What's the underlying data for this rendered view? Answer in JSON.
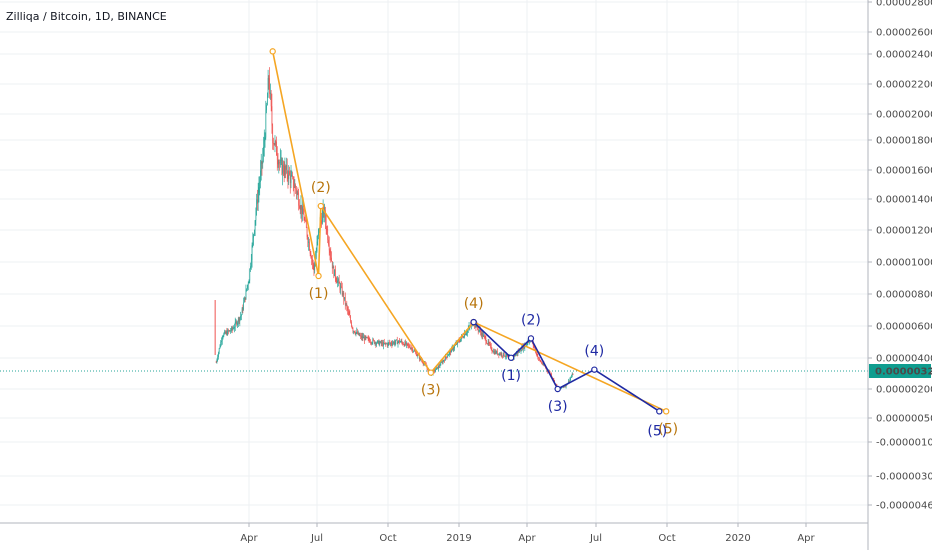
{
  "chart_title": "Zilliqa / Bitcoin, 1D, BINANCE",
  "colors": {
    "candle_up": "#26a69a",
    "candle_down": "#ef5350",
    "wave_primary": "#f5a623",
    "wave_primary_label": "#b8750c",
    "wave_secondary": "#1f2aa3",
    "last_price_line": "#26a69a",
    "last_price_badge": "#0f9d8f"
  },
  "chart_data": {
    "type": "candlestick",
    "title": "Zilliqa / Bitcoin, 1D, BINANCE",
    "x_unit": "date",
    "y_tick_labels": [
      "0.00002800",
      "0.00002600",
      "0.00002400",
      "0.00002200",
      "0.00002000",
      "0.00001800",
      "0.00001600",
      "0.00001400",
      "0.00001200",
      "0.00001000",
      "0.00000800",
      "0.00000600",
      "0.00000400",
      "0.00000200",
      "0.00000050",
      "-0.00000100",
      "-0.00000300",
      "-0.00000460"
    ],
    "x_tick_labels": [
      "Apr",
      "Jul",
      "Oct",
      "2019",
      "Apr",
      "Jul",
      "Oct",
      "2020",
      "Apr"
    ],
    "last_price": "0.00000320",
    "price_series": [
      [
        "2018-02-17",
        3.8e-06
      ],
      [
        "2018-02-25",
        5.6e-06
      ],
      [
        "2018-03-10",
        6e-06
      ],
      [
        "2018-03-22",
        7e-06
      ],
      [
        "2018-04-01",
        9.5e-06
      ],
      [
        "2018-04-10",
        1.4e-05
      ],
      [
        "2018-04-20",
        1.8e-05
      ],
      [
        "2018-04-27",
        2.3e-05
      ],
      [
        "2018-05-02",
        1.9e-05
      ],
      [
        "2018-05-12",
        1.7e-05
      ],
      [
        "2018-05-22",
        1.65e-05
      ],
      [
        "2018-06-01",
        1.55e-05
      ],
      [
        "2018-06-12",
        1.35e-05
      ],
      [
        "2018-06-25",
        1e-05
      ],
      [
        "2018-07-02",
        1.3e-05
      ],
      [
        "2018-07-08",
        1.4e-05
      ],
      [
        "2018-07-20",
        1e-05
      ],
      [
        "2018-08-01",
        8.5e-06
      ],
      [
        "2018-08-15",
        6e-06
      ],
      [
        "2018-08-25",
        5.5e-06
      ],
      [
        "2018-09-10",
        5.2e-06
      ],
      [
        "2018-09-25",
        5e-06
      ],
      [
        "2018-10-15",
        5.2e-06
      ],
      [
        "2018-10-30",
        4.8e-06
      ],
      [
        "2018-11-15",
        3.8e-06
      ],
      [
        "2018-11-25",
        3e-06
      ],
      [
        "2018-12-05",
        3.5e-06
      ],
      [
        "2018-12-20",
        4.5e-06
      ],
      [
        "2019-01-05",
        5.5e-06
      ],
      [
        "2019-01-20",
        6.5e-06
      ],
      [
        "2019-02-01",
        5.6e-06
      ],
      [
        "2019-02-15",
        4.5e-06
      ],
      [
        "2019-03-01",
        4.3e-06
      ],
      [
        "2019-03-10",
        4e-06
      ],
      [
        "2019-03-25",
        4.8e-06
      ],
      [
        "2019-04-05",
        5.4e-06
      ],
      [
        "2019-04-15",
        4e-06
      ],
      [
        "2019-05-01",
        3e-06
      ],
      [
        "2019-05-10",
        2e-06
      ],
      [
        "2019-05-20",
        2.2e-06
      ],
      [
        "2019-05-30",
        3e-06
      ]
    ],
    "wave_primary": [
      [
        "2018-05-02",
        2.47e-05
      ],
      [
        "2018-07-01",
        9.6e-06
      ],
      [
        "2018-07-04",
        1.43e-05
      ],
      [
        "2018-11-25",
        3.1e-06
      ],
      [
        "2019-01-20",
        6.5e-06
      ],
      [
        "2019-09-29",
        5e-07
      ]
    ],
    "wave_primary_labels": [
      {
        "text": "(1)",
        "date": "2018-07-01",
        "price": 9.6e-06,
        "pos": "below"
      },
      {
        "text": "(2)",
        "date": "2018-07-04",
        "price": 1.43e-05,
        "pos": "above"
      },
      {
        "text": "(3)",
        "date": "2018-11-25",
        "price": 3.1e-06,
        "pos": "below"
      },
      {
        "text": "(4)",
        "date": "2019-01-20",
        "price": 6.5e-06,
        "pos": "above"
      },
      {
        "text": "(5)",
        "date": "2019-09-29",
        "price": 5e-07,
        "pos": "below-right"
      }
    ],
    "wave_secondary": [
      [
        "2019-01-20",
        6.5e-06
      ],
      [
        "2019-03-10",
        4.1e-06
      ],
      [
        "2019-04-05",
        5.4e-06
      ],
      [
        "2019-05-10",
        2e-06
      ],
      [
        "2019-06-27",
        3.3e-06
      ],
      [
        "2019-09-20",
        5e-07
      ]
    ],
    "wave_secondary_labels": [
      {
        "text": "(1)",
        "date": "2019-03-10",
        "price": 4.1e-06,
        "pos": "below"
      },
      {
        "text": "(2)",
        "date": "2019-04-05",
        "price": 5.4e-06,
        "pos": "above"
      },
      {
        "text": "(3)",
        "date": "2019-05-10",
        "price": 2e-06,
        "pos": "below"
      },
      {
        "text": "(4)",
        "date": "2019-06-27",
        "price": 3.3e-06,
        "pos": "above"
      },
      {
        "text": "(5)",
        "date": "2019-09-20",
        "price": 5e-07,
        "pos": "below-left"
      }
    ]
  }
}
